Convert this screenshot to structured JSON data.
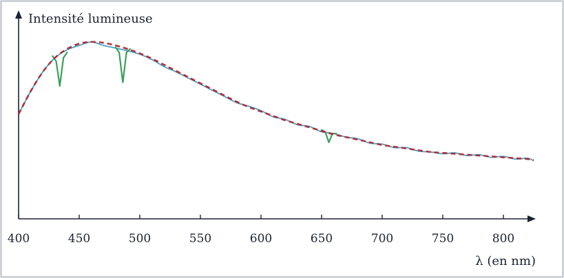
{
  "chart_data": {
    "type": "line",
    "ylabel": "Intensité lumineuse",
    "xlabel": "λ (en nm)",
    "xlim": [
      400,
      825
    ],
    "ylim": [
      0,
      1
    ],
    "x_ticks": [
      400,
      450,
      500,
      550,
      600,
      650,
      700,
      750,
      800
    ],
    "grid": false,
    "series": [
      {
        "style": "dashed",
        "color": "#b0303a",
        "x": [
          400,
          410,
          420,
          430,
          440,
          450,
          460,
          470,
          480,
          490,
          500,
          510,
          520,
          530,
          540,
          550,
          560,
          570,
          580,
          590,
          600,
          610,
          620,
          630,
          640,
          650,
          660,
          670,
          680,
          690,
          700,
          710,
          720,
          730,
          740,
          750,
          760,
          770,
          780,
          790,
          800,
          810,
          820,
          825
        ],
        "values": [
          0.52,
          0.65,
          0.76,
          0.84,
          0.89,
          0.92,
          0.93,
          0.925,
          0.91,
          0.89,
          0.865,
          0.835,
          0.8,
          0.765,
          0.73,
          0.695,
          0.66,
          0.625,
          0.59,
          0.56,
          0.535,
          0.51,
          0.485,
          0.465,
          0.445,
          0.425,
          0.405,
          0.39,
          0.375,
          0.36,
          0.345,
          0.335,
          0.325,
          0.315,
          0.305,
          0.3,
          0.295,
          0.29,
          0.285,
          0.28,
          0.275,
          0.27,
          0.265,
          0.26
        ]
      },
      {
        "style": "solid",
        "color": "#4a9fc8",
        "x": [
          400,
          410,
          420,
          430,
          440,
          450,
          460,
          470,
          480,
          490,
          500,
          510,
          520,
          530,
          540,
          550,
          560,
          570,
          580,
          590,
          600,
          610,
          620,
          630,
          640,
          650,
          660,
          670,
          680,
          690,
          700,
          710,
          720,
          730,
          740,
          750,
          760,
          770,
          780,
          790,
          800,
          810,
          820,
          825
        ],
        "values": [
          0.52,
          0.65,
          0.76,
          0.84,
          0.885,
          0.91,
          0.93,
          0.91,
          0.895,
          0.88,
          0.86,
          0.83,
          0.79,
          0.76,
          0.725,
          0.69,
          0.655,
          0.62,
          0.585,
          0.565,
          0.54,
          0.505,
          0.49,
          0.46,
          0.45,
          0.42,
          0.41,
          0.39,
          0.38,
          0.355,
          0.35,
          0.33,
          0.33,
          0.31,
          0.305,
          0.295,
          0.3,
          0.285,
          0.29,
          0.275,
          0.28,
          0.265,
          0.27,
          0.255
        ]
      },
      {
        "style": "solid",
        "color": "#3aa05a",
        "note_lines_nm": [
          434,
          486,
          656
        ],
        "x": [
          428,
          431,
          434,
          437,
          440,
          480,
          483,
          486,
          489,
          492,
          650,
          653,
          656,
          659,
          662
        ],
        "values": [
          0.85,
          0.82,
          0.68,
          0.84,
          0.87,
          0.9,
          0.87,
          0.7,
          0.87,
          0.89,
          0.43,
          0.42,
          0.36,
          0.41,
          0.41
        ]
      }
    ]
  }
}
